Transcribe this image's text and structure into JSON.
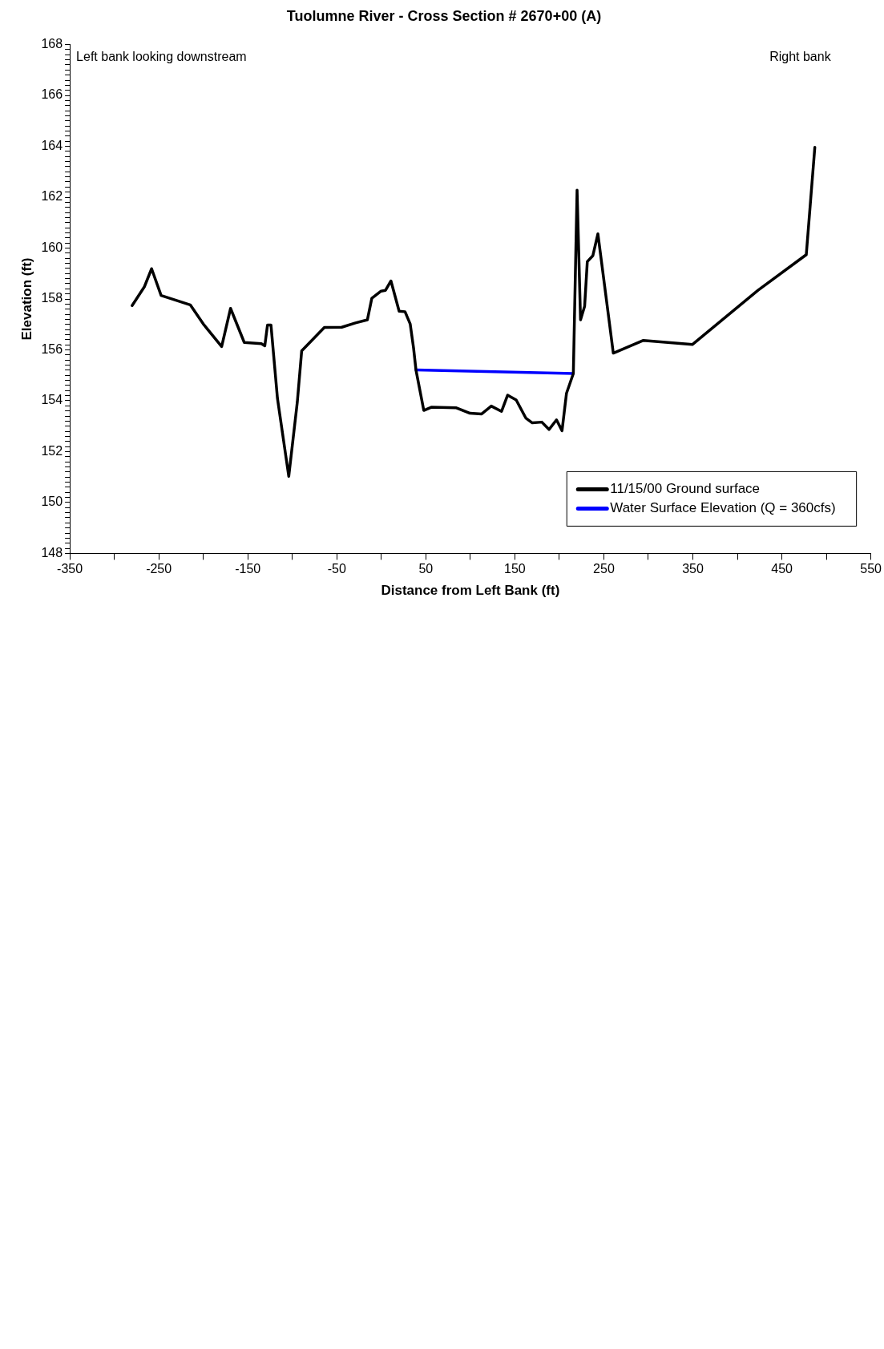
{
  "chart_data": {
    "type": "line",
    "title": "Tuolumne River - Cross Section # 2670+00 (A)",
    "xlabel": "Distance from Left Bank (ft)",
    "ylabel": "Elevation (ft)",
    "annotations": [
      "Left bank looking downstream",
      "Right bank"
    ],
    "xlim": [
      -350,
      550
    ],
    "xticks": [
      -350,
      {
        "value": -300,
        "label": null
      },
      -250,
      {
        "value": -200,
        "label": null
      },
      -150,
      {
        "value": -100,
        "label": null
      },
      -50,
      {
        "value": 0,
        "label": null
      },
      50,
      {
        "value": 100,
        "label": null
      },
      150,
      {
        "value": 200,
        "label": null
      },
      250,
      {
        "value": 300,
        "label": null
      },
      350,
      {
        "value": 400,
        "label": null
      },
      450,
      {
        "value": 500,
        "label": null
      },
      550
    ],
    "ylim": [
      148,
      168
    ],
    "yticks": [
      148,
      {
        "value": 148.2,
        "label": null
      },
      {
        "value": 148.4,
        "label": null
      },
      {
        "value": 148.6,
        "label": null
      },
      {
        "value": 148.8,
        "label": null
      },
      {
        "value": 149,
        "label": null
      },
      {
        "value": 149.2,
        "label": null
      },
      {
        "value": 149.4,
        "label": null
      },
      {
        "value": 149.6,
        "label": null
      },
      {
        "value": 149.8,
        "label": null
      },
      150,
      {
        "value": 150.2,
        "label": null
      },
      {
        "value": 150.4,
        "label": null
      },
      {
        "value": 150.6,
        "label": null
      },
      {
        "value": 150.8,
        "label": null
      },
      {
        "value": 151,
        "label": null
      },
      {
        "value": 151.2,
        "label": null
      },
      {
        "value": 151.4,
        "label": null
      },
      {
        "value": 151.6,
        "label": null
      },
      {
        "value": 151.8,
        "label": null
      },
      152,
      {
        "value": 152.2,
        "label": null
      },
      {
        "value": 152.4,
        "label": null
      },
      {
        "value": 152.6,
        "label": null
      },
      {
        "value": 152.8,
        "label": null
      },
      {
        "value": 153,
        "label": null
      },
      {
        "value": 153.2,
        "label": null
      },
      {
        "value": 153.4,
        "label": null
      },
      {
        "value": 153.6,
        "label": null
      },
      {
        "value": 153.8,
        "label": null
      },
      154,
      {
        "value": 154.2,
        "label": null
      },
      {
        "value": 154.4,
        "label": null
      },
      {
        "value": 154.6,
        "label": null
      },
      {
        "value": 154.8,
        "label": null
      },
      {
        "value": 155,
        "label": null
      },
      {
        "value": 155.2,
        "label": null
      },
      {
        "value": 155.4,
        "label": null
      },
      {
        "value": 155.6,
        "label": null
      },
      {
        "value": 155.8,
        "label": null
      },
      156,
      {
        "value": 156.2,
        "label": null
      },
      {
        "value": 156.4,
        "label": null
      },
      {
        "value": 156.6,
        "label": null
      },
      {
        "value": 156.8,
        "label": null
      },
      {
        "value": 157,
        "label": null
      },
      {
        "value": 157.2,
        "label": null
      },
      {
        "value": 157.4,
        "label": null
      },
      {
        "value": 157.6,
        "label": null
      },
      {
        "value": 157.8,
        "label": null
      },
      158,
      {
        "value": 158.2,
        "label": null
      },
      {
        "value": 158.4,
        "label": null
      },
      {
        "value": 158.6,
        "label": null
      },
      {
        "value": 158.8,
        "label": null
      },
      {
        "value": 159,
        "label": null
      },
      {
        "value": 159.2,
        "label": null
      },
      {
        "value": 159.4,
        "label": null
      },
      {
        "value": 159.6,
        "label": null
      },
      {
        "value": 159.8,
        "label": null
      },
      160,
      {
        "value": 160.2,
        "label": null
      },
      {
        "value": 160.4,
        "label": null
      },
      {
        "value": 160.6,
        "label": null
      },
      {
        "value": 160.8,
        "label": null
      },
      {
        "value": 161,
        "label": null
      },
      {
        "value": 161.2,
        "label": null
      },
      {
        "value": 161.4,
        "label": null
      },
      {
        "value": 161.6,
        "label": null
      },
      {
        "value": 161.8,
        "label": null
      },
      162,
      {
        "value": 162.2,
        "label": null
      },
      {
        "value": 162.4,
        "label": null
      },
      {
        "value": 162.6,
        "label": null
      },
      {
        "value": 162.8,
        "label": null
      },
      {
        "value": 163,
        "label": null
      },
      {
        "value": 163.2,
        "label": null
      },
      {
        "value": 163.4,
        "label": null
      },
      {
        "value": 163.6,
        "label": null
      },
      {
        "value": 163.8,
        "label": null
      },
      164,
      {
        "value": 164.2,
        "label": null
      },
      {
        "value": 164.4,
        "label": null
      },
      {
        "value": 164.6,
        "label": null
      },
      {
        "value": 164.8,
        "label": null
      },
      {
        "value": 165,
        "label": null
      },
      {
        "value": 165.2,
        "label": null
      },
      {
        "value": 165.4,
        "label": null
      },
      {
        "value": 165.6,
        "label": null
      },
      {
        "value": 165.8,
        "label": null
      },
      166,
      {
        "value": 166.2,
        "label": null
      },
      {
        "value": 166.4,
        "label": null
      },
      {
        "value": 166.6,
        "label": null
      },
      {
        "value": 166.8,
        "label": null
      },
      {
        "value": 167,
        "label": null
      },
      {
        "value": 167.2,
        "label": null
      },
      {
        "value": 167.4,
        "label": null
      },
      {
        "value": 167.6,
        "label": null
      },
      {
        "value": 167.8,
        "label": null
      },
      168
    ],
    "grid": false,
    "legend": "bottom right",
    "marker": "none",
    "line_style": "solid",
    "series": [
      {
        "name": "11/15/00 Ground surface",
        "color": "#000000",
        "x": [
          -280.0,
          -266.2,
          -258.1,
          -247.4,
          -214.7,
          -200.1,
          -179.4,
          -169.4,
          -154.0,
          -134.8,
          -130.9,
          -127.9,
          -124.0,
          -116.7,
          -104.0,
          -94.4,
          -89.5,
          -64.0,
          -44.5,
          -29.1,
          -15.7,
          -10.7,
          -0.3,
          4.7,
          10.8,
          20.0,
          26.6,
          32.4,
          36.2,
          38.9,
          47.7,
          56.6,
          84.3,
          99.6,
          112.7,
          123.5,
          135.0,
          141.9,
          151.5,
          162.3,
          169.6,
          180.3,
          188.4,
          196.8,
          203.0,
          208.0,
          215.7,
          219.9,
          223.8,
          228.4,
          231.4,
          237.6,
          243.3,
          260.6,
          294.4,
          349.4,
          423.2,
          477.4,
          487.0
        ],
        "values": [
          157.74,
          158.48,
          159.19,
          158.14,
          157.77,
          157.02,
          156.13,
          157.63,
          156.29,
          156.24,
          156.16,
          156.98,
          156.98,
          154.09,
          151.03,
          153.95,
          155.96,
          156.88,
          156.89,
          157.06,
          157.18,
          158.03,
          158.31,
          158.34,
          158.71,
          157.52,
          157.5,
          157.02,
          156.07,
          155.21,
          153.62,
          153.75,
          153.72,
          153.51,
          153.48,
          153.79,
          153.58,
          154.22,
          154.03,
          153.32,
          153.13,
          153.16,
          152.87,
          153.25,
          152.82,
          154.29,
          155.07,
          162.28,
          157.18,
          157.72,
          159.47,
          159.7,
          160.56,
          155.87,
          156.37,
          156.21,
          158.34,
          159.74,
          163.96
        ]
      },
      {
        "name": "Water Surface Elevation (Q = 360cfs)",
        "color": "#0000ff",
        "x": [
          38.9,
          215.7
        ],
        "values": [
          155.21,
          155.07
        ]
      }
    ]
  }
}
